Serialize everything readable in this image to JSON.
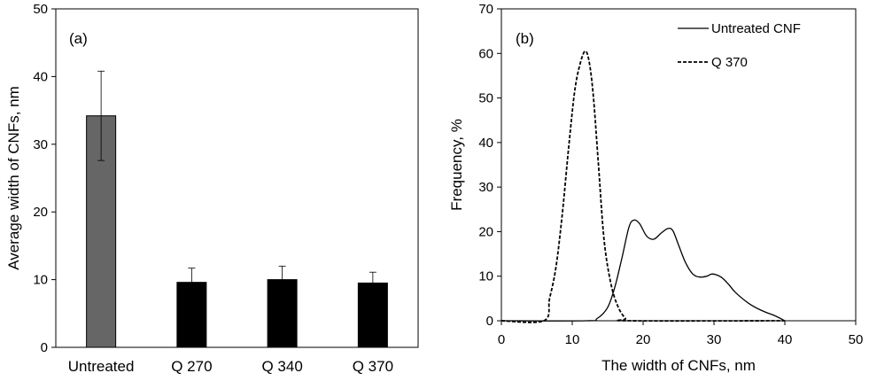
{
  "chart_data": [
    {
      "type": "bar",
      "panel_label": "(a)",
      "categories": [
        "Untreated",
        "Q 270",
        "Q 340",
        "Q 370"
      ],
      "values": [
        34.2,
        9.6,
        10.0,
        9.5
      ],
      "error": [
        6.6,
        2.1,
        2.0,
        1.6
      ],
      "bar_colors": [
        "#666666",
        "#000000",
        "#000000",
        "#000000"
      ],
      "ylabel": "Average width of CNFs, nm",
      "xlabel": "",
      "ylim": [
        0,
        50
      ],
      "yticks": [
        0,
        10,
        20,
        30,
        40,
        50
      ],
      "grid": false
    },
    {
      "type": "line",
      "panel_label": "(b)",
      "xlabel": "The width of CNFs, nm",
      "ylabel": "Frequency, %",
      "xlim": [
        0,
        50
      ],
      "ylim": [
        0,
        70
      ],
      "xticks": [
        0,
        10,
        20,
        30,
        40,
        50
      ],
      "yticks": [
        0,
        10,
        20,
        30,
        40,
        50,
        60,
        70
      ],
      "legend_position": "top-right",
      "grid": false,
      "series": [
        {
          "name": "Untreated CNF",
          "style": "solid",
          "points": [
            [
              0,
              0
            ],
            [
              12,
              0
            ],
            [
              13.5,
              0.5
            ],
            [
              15,
              3
            ],
            [
              16,
              7.5
            ],
            [
              17,
              14
            ],
            [
              18,
              21
            ],
            [
              18.7,
              22.6
            ],
            [
              19.5,
              21.8
            ],
            [
              20.5,
              19
            ],
            [
              21.5,
              18.3
            ],
            [
              22.5,
              19.6
            ],
            [
              23.5,
              20.7
            ],
            [
              24.2,
              20.2
            ],
            [
              25,
              17
            ],
            [
              26,
              13
            ],
            [
              27,
              10.5
            ],
            [
              28,
              9.8
            ],
            [
              29,
              10
            ],
            [
              29.8,
              10.5
            ],
            [
              31,
              9.8
            ],
            [
              32,
              8.3
            ],
            [
              33,
              6.4
            ],
            [
              35,
              3.8
            ],
            [
              37,
              2.1
            ],
            [
              38.5,
              1.2
            ],
            [
              40,
              0
            ]
          ]
        },
        {
          "name": "Q 370",
          "style": "dashed",
          "points": [
            [
              0,
              0
            ],
            [
              6,
              0
            ],
            [
              6.8,
              5
            ],
            [
              7.7,
              12
            ],
            [
              8.6,
              24
            ],
            [
              9.5,
              39
            ],
            [
              10.3,
              51
            ],
            [
              11,
              57
            ],
            [
              11.8,
              60.5
            ],
            [
              12.4,
              58
            ],
            [
              13,
              50
            ],
            [
              13.7,
              35
            ],
            [
              14.5,
              18
            ],
            [
              15.5,
              8
            ],
            [
              16.5,
              3
            ],
            [
              17.5,
              0.5
            ],
            [
              18,
              0
            ],
            [
              40,
              0
            ]
          ]
        }
      ]
    }
  ]
}
